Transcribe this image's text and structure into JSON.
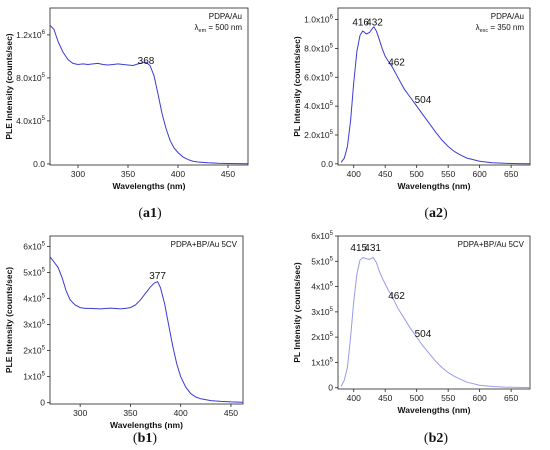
{
  "chart_data": [
    {
      "id": "a1",
      "type": "line",
      "caption_letter": "a",
      "caption_digit": "1",
      "xlabel": "Wavelengths (nm)",
      "ylabel": "PLE Intensity (counts/sec)",
      "xlim": [
        272,
        470
      ],
      "ylim": [
        -10000,
        1450000
      ],
      "xticks": [
        300,
        350,
        400,
        450
      ],
      "yticks": [
        {
          "value": 0,
          "mant": "0.0",
          "exp": ""
        },
        {
          "value": 400000,
          "mant": "4.0x10",
          "exp": "5"
        },
        {
          "value": 800000,
          "mant": "8.0x10",
          "exp": "5"
        },
        {
          "value": 1200000,
          "mant": "1.2x10",
          "exp": "6"
        }
      ],
      "legend": {
        "line1": "PDPA/Au",
        "line2_main": "λ",
        "line2_sub": "em",
        "line2_rest": " = 500 nm"
      },
      "color": "#3b3bd4",
      "annotations": [
        {
          "text": "368",
          "x": 368,
          "y": 930000
        }
      ],
      "series": [
        {
          "x": [
            272,
            276,
            280,
            285,
            290,
            295,
            300,
            305,
            310,
            315,
            320,
            325,
            330,
            335,
            340,
            345,
            350,
            355,
            360,
            365,
            368,
            372,
            376,
            380,
            384,
            388,
            392,
            396,
            400,
            405,
            410,
            415,
            420,
            430,
            440,
            450,
            460,
            470
          ],
          "y": [
            1290000,
            1250000,
            1140000,
            1040000,
            970000,
            935000,
            925000,
            930000,
            925000,
            930000,
            935000,
            925000,
            920000,
            925000,
            930000,
            925000,
            920000,
            915000,
            930000,
            940000,
            945000,
            915000,
            820000,
            650000,
            470000,
            330000,
            220000,
            150000,
            105000,
            65000,
            40000,
            25000,
            18000,
            10000,
            6000,
            4000,
            3000,
            2000
          ]
        }
      ]
    },
    {
      "id": "a2",
      "type": "line",
      "caption_letter": "a",
      "caption_digit": "2",
      "xlabel": "Wavelengths (nm)",
      "ylabel": "PL Intensity (counts/sec)",
      "xlim": [
        375,
        680
      ],
      "ylim": [
        -8000,
        1080000
      ],
      "xticks": [
        400,
        450,
        500,
        550,
        600,
        650
      ],
      "yticks": [
        {
          "value": 0,
          "mant": "0.0",
          "exp": ""
        },
        {
          "value": 200000,
          "mant": "2.0x10",
          "exp": "5"
        },
        {
          "value": 400000,
          "mant": "4.0x10",
          "exp": "5"
        },
        {
          "value": 600000,
          "mant": "6.0x10",
          "exp": "5"
        },
        {
          "value": 800000,
          "mant": "8.0x10",
          "exp": "5"
        },
        {
          "value": 1000000,
          "mant": "1.0x10",
          "exp": "6"
        }
      ],
      "legend": {
        "line1": "PDPA/Au",
        "line2_main": "λ",
        "line2_sub": "exc",
        "line2_rest": " = 350 nm"
      },
      "color": "#3b3bd4",
      "annotations": [
        {
          "text": "416",
          "x": 411,
          "y": 960000
        },
        {
          "text": "432",
          "x": 433,
          "y": 960000
        },
        {
          "text": "462",
          "x": 468,
          "y": 680000
        },
        {
          "text": "504",
          "x": 510,
          "y": 420000
        }
      ],
      "series": [
        {
          "x": [
            380,
            385,
            390,
            395,
            400,
            405,
            410,
            414,
            416,
            420,
            425,
            430,
            432,
            436,
            440,
            445,
            450,
            455,
            460,
            465,
            470,
            480,
            490,
            500,
            510,
            520,
            530,
            540,
            550,
            560,
            570,
            580,
            600,
            620,
            640,
            660,
            680
          ],
          "y": [
            10000,
            40000,
            120000,
            300000,
            560000,
            780000,
            890000,
            920000,
            915000,
            900000,
            910000,
            940000,
            950000,
            920000,
            870000,
            800000,
            745000,
            710000,
            680000,
            640000,
            600000,
            520000,
            460000,
            400000,
            340000,
            280000,
            220000,
            165000,
            120000,
            85000,
            60000,
            40000,
            18000,
            8000,
            4000,
            2000,
            1000
          ]
        }
      ]
    },
    {
      "id": "b1",
      "type": "line",
      "caption_letter": "b",
      "caption_digit": "1",
      "xlabel": "Wavelengths (nm)",
      "ylabel": "PLE Intensity (counts/sec)",
      "xlim": [
        270,
        462
      ],
      "ylim": [
        -5000,
        640000
      ],
      "xticks": [
        300,
        350,
        400,
        450
      ],
      "yticks": [
        {
          "value": 0,
          "mant": "0",
          "exp": ""
        },
        {
          "value": 100000,
          "mant": "1x10",
          "exp": "5"
        },
        {
          "value": 200000,
          "mant": "2x10",
          "exp": "5"
        },
        {
          "value": 300000,
          "mant": "3x10",
          "exp": "5"
        },
        {
          "value": 400000,
          "mant": "4x10",
          "exp": "5"
        },
        {
          "value": 500000,
          "mant": "5x10",
          "exp": "5"
        },
        {
          "value": 600000,
          "mant": "6x10",
          "exp": "5"
        }
      ],
      "legend": {
        "line1": "PDPA+BP/Au 5CV",
        "line2_main": "",
        "line2_sub": "",
        "line2_rest": ""
      },
      "color": "#3b3bd4",
      "annotations": [
        {
          "text": "377",
          "x": 377,
          "y": 475000
        }
      ],
      "series": [
        {
          "x": [
            270,
            274,
            278,
            282,
            286,
            290,
            295,
            300,
            305,
            310,
            320,
            330,
            340,
            345,
            350,
            355,
            360,
            365,
            370,
            374,
            377,
            380,
            384,
            388,
            392,
            396,
            400,
            405,
            410,
            415,
            420,
            430,
            440,
            450,
            462
          ],
          "y": [
            560000,
            540000,
            520000,
            480000,
            430000,
            395000,
            375000,
            365000,
            362000,
            362000,
            360000,
            363000,
            360000,
            362000,
            365000,
            375000,
            395000,
            420000,
            445000,
            460000,
            465000,
            440000,
            380000,
            300000,
            220000,
            150000,
            100000,
            60000,
            35000,
            22000,
            15000,
            8000,
            5000,
            3000,
            2000
          ]
        }
      ]
    },
    {
      "id": "b2",
      "type": "line",
      "caption_letter": "b",
      "caption_digit": "2",
      "xlabel": "Wavelengths (nm)",
      "ylabel": "PL Intensity (counts/sec)",
      "xlim": [
        375,
        680
      ],
      "ylim": [
        -5000,
        600000
      ],
      "xticks": [
        400,
        450,
        500,
        550,
        600,
        650
      ],
      "yticks": [
        {
          "value": 0,
          "mant": "0",
          "exp": ""
        },
        {
          "value": 100000,
          "mant": "1x10",
          "exp": "5"
        },
        {
          "value": 200000,
          "mant": "2x10",
          "exp": "5"
        },
        {
          "value": 300000,
          "mant": "3x10",
          "exp": "5"
        },
        {
          "value": 400000,
          "mant": "4x10",
          "exp": "5"
        },
        {
          "value": 500000,
          "mant": "5x10",
          "exp": "5"
        },
        {
          "value": 600000,
          "mant": "6x10",
          "exp": "5"
        }
      ],
      "legend": {
        "line1": "PDPA+BP/Au 5CV",
        "line2_main": "",
        "line2_sub": "",
        "line2_rest": ""
      },
      "color": "#9a9aee",
      "annotations": [
        {
          "text": "415",
          "x": 408,
          "y": 540000
        },
        {
          "text": "431",
          "x": 430,
          "y": 540000
        },
        {
          "text": "462",
          "x": 468,
          "y": 350000
        },
        {
          "text": "504",
          "x": 510,
          "y": 200000
        }
      ],
      "series": [
        {
          "x": [
            380,
            385,
            390,
            395,
            400,
            405,
            410,
            415,
            420,
            425,
            431,
            436,
            440,
            445,
            450,
            455,
            460,
            465,
            470,
            480,
            490,
            500,
            510,
            520,
            530,
            540,
            550,
            560,
            570,
            580,
            600,
            620,
            640,
            660,
            680
          ],
          "y": [
            5000,
            30000,
            80000,
            200000,
            340000,
            450000,
            505000,
            515000,
            510000,
            508000,
            515000,
            495000,
            465000,
            435000,
            410000,
            385000,
            365000,
            340000,
            315000,
            275000,
            235000,
            200000,
            165000,
            135000,
            105000,
            80000,
            60000,
            45000,
            33000,
            22000,
            10000,
            5000,
            2500,
            1500,
            800
          ]
        }
      ]
    }
  ]
}
